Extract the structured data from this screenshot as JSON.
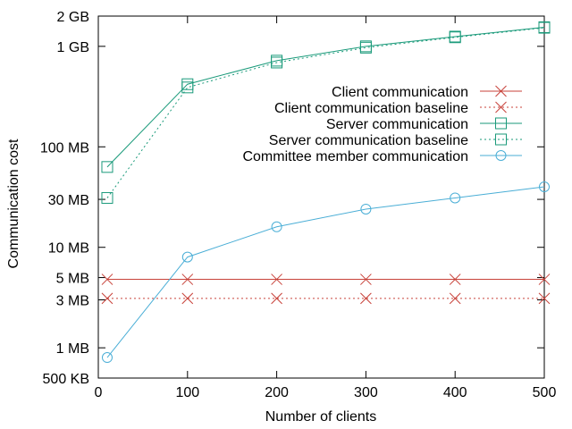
{
  "chart_data": {
    "type": "line",
    "title": "",
    "xlabel": "Number of clients",
    "ylabel": "Communication cost",
    "xlim": [
      0,
      500
    ],
    "ylim_bytes": [
      500000,
      2000000000
    ],
    "y_scale": "log",
    "y_unit": "bytes",
    "grid": false,
    "legend_position": "right",
    "x_ticks": [
      {
        "value": 0,
        "label": "0"
      },
      {
        "value": 100,
        "label": "100"
      },
      {
        "value": 200,
        "label": "200"
      },
      {
        "value": 300,
        "label": "300"
      },
      {
        "value": 400,
        "label": "400"
      },
      {
        "value": 500,
        "label": "500"
      }
    ],
    "y_ticks": [
      {
        "value": 500000,
        "label": "500 KB"
      },
      {
        "value": 1000000,
        "label": "1 MB"
      },
      {
        "value": 3000000,
        "label": "3 MB"
      },
      {
        "value": 5000000,
        "label": "5 MB"
      },
      {
        "value": 10000000,
        "label": "10 MB"
      },
      {
        "value": 30000000,
        "label": "30 MB"
      },
      {
        "value": 100000000,
        "label": "100 MB"
      },
      {
        "value": 1000000000,
        "label": "1 GB"
      },
      {
        "value": 2000000000,
        "label": "2 GB"
      }
    ],
    "x": [
      10,
      100,
      200,
      300,
      400,
      500
    ],
    "series": [
      {
        "name": "Client communication",
        "color": "#c8423a",
        "dash": "solid",
        "marker": "x",
        "values": [
          4800000,
          4800000,
          4800000,
          4800000,
          4800000,
          4800000
        ]
      },
      {
        "name": "Client communication baseline",
        "color": "#c8423a",
        "dash": "dotted",
        "marker": "x",
        "values": [
          3100000,
          3100000,
          3100000,
          3100000,
          3100000,
          3100000
        ]
      },
      {
        "name": "Server communication",
        "color": "#1a9a7a",
        "dash": "solid",
        "marker": "square",
        "values": [
          63000000,
          420000000,
          720000000,
          1000000000,
          1250000000,
          1550000000
        ]
      },
      {
        "name": "Server communication baseline",
        "color": "#1a9a7a",
        "dash": "dotted",
        "marker": "square",
        "values": [
          31000000,
          390000000,
          690000000,
          970000000,
          1230000000,
          1530000000
        ]
      },
      {
        "name": "Committee member communication",
        "color": "#4aaed6",
        "dash": "solid",
        "marker": "circle",
        "values": [
          800000,
          8000000,
          16000000,
          24000000,
          31000000,
          40000000
        ]
      }
    ]
  }
}
